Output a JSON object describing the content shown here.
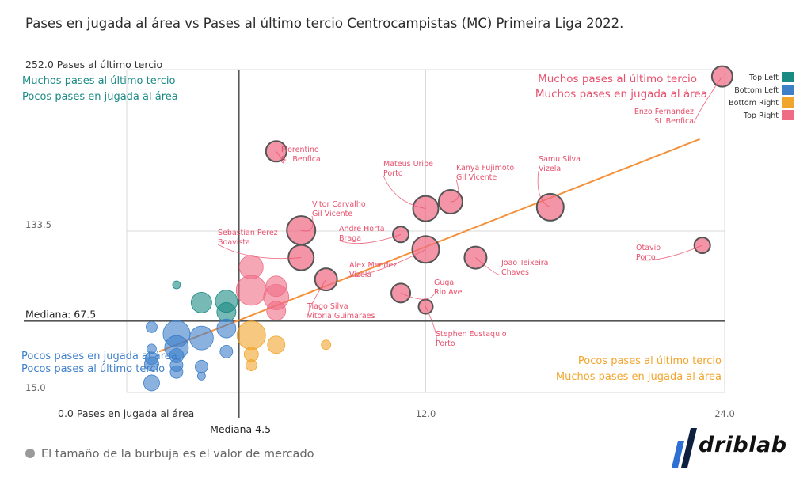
{
  "title": "Pases en jugada al área vs Pases al último tercio Centrocampistas (MC) Primeira Liga 2022.",
  "footer": {
    "icon": "bulb-icon",
    "text": "El tamaño de la burbuja es el valor de mercado"
  },
  "brand": {
    "name": "driblab"
  },
  "colors": {
    "top_left": "#1a8a84",
    "bottom_left": "#3d7fc9",
    "bottom_right": "#f2a52c",
    "top_right": "#ee6c85",
    "trend": "#f4903a",
    "grid": "#d9d9d9",
    "median": "#555555"
  },
  "chart_data": {
    "type": "scatter",
    "x_axis": {
      "label": "Pases en jugada al área",
      "ticks": [
        "0.0 Pases en jugada al área",
        "12.0",
        "24.0"
      ],
      "range": [
        0.0,
        24.0
      ],
      "median_label": "Mediana 4.5",
      "median": 4.5
    },
    "y_axis": {
      "label": "Pases al último tercio",
      "ticks": [
        "252.0 Pases al último tercio",
        "133.5",
        "15.0"
      ],
      "range": [
        15.0,
        252.0
      ],
      "median_label": "Mediana: 67.5",
      "median": 67.5
    },
    "grid": true,
    "legend_position": "right",
    "legend": [
      {
        "name": "Top Left",
        "color": "#1a8a84"
      },
      {
        "name": "Bottom Left",
        "color": "#3d7fc9"
      },
      {
        "name": "Bottom Right",
        "color": "#f2a52c"
      },
      {
        "name": "Top Right",
        "color": "#ee6c85"
      }
    ],
    "quadrant_labels": {
      "top_left": [
        "Muchos pases al último tercio",
        "Pocos pases en jugada al área"
      ],
      "top_right": [
        "Muchos pases al último tercio",
        "Muchos pases en jugada al área"
      ],
      "bottom_left": [
        "Pocos pases en jugada al área",
        "Pocos pases al último tercio"
      ],
      "bottom_right": [
        "Pocos pases al último tercio",
        "Muchos pases en jugada al área"
      ]
    },
    "trend_line": {
      "x": [
        1.3,
        23.0
      ],
      "y": [
        45.0,
        201.0
      ]
    },
    "points": [
      {
        "x": 23.9,
        "y": 247,
        "size": 13,
        "group": "Top Right",
        "label": [
          "Enzo Fernandez",
          "SL Benfica"
        ]
      },
      {
        "x": 23.1,
        "y": 123,
        "size": 10,
        "group": "Top Right",
        "label": [
          "Otavio",
          "Porto"
        ]
      },
      {
        "x": 17.0,
        "y": 151,
        "size": 17,
        "group": "Top Right",
        "label": [
          "Samu Silva",
          "Vizela"
        ]
      },
      {
        "x": 13.0,
        "y": 155,
        "size": 15,
        "group": "Top Right",
        "label": [
          "Kanya Fujimoto",
          "Gil Vicente"
        ]
      },
      {
        "x": 12.0,
        "y": 150,
        "size": 16,
        "group": "Top Right",
        "label": [
          "Mateus Uribe",
          "Porto"
        ]
      },
      {
        "x": 14.0,
        "y": 114,
        "size": 14,
        "group": "Top Right",
        "label": [
          "Joao Teixeira",
          "Chaves"
        ]
      },
      {
        "x": 12.0,
        "y": 120,
        "size": 17,
        "group": "Top Right",
        "label": [
          "Alex Mendez",
          "Vizelá"
        ]
      },
      {
        "x": 11.0,
        "y": 131,
        "size": 10,
        "group": "Top Right",
        "label": [
          "Andre Horta",
          "Braga"
        ]
      },
      {
        "x": 11.0,
        "y": 88,
        "size": 12,
        "group": "Top Right",
        "label": [
          "Guga",
          "Rio Ave"
        ]
      },
      {
        "x": 12.0,
        "y": 78,
        "size": 9,
        "group": "Top Right",
        "label": [
          "Stephen Eustaquio",
          "Porto"
        ]
      },
      {
        "x": 6.0,
        "y": 192,
        "size": 13,
        "group": "Top Right",
        "label": [
          "Florentino",
          "SL Benfica"
        ]
      },
      {
        "x": 7.0,
        "y": 134,
        "size": 18,
        "group": "Top Right",
        "label": [
          "Vitor Carvalho",
          "Gil Vicente"
        ]
      },
      {
        "x": 7.0,
        "y": 114,
        "size": 16,
        "group": "Top Right",
        "label": [
          "Sebastian Perez",
          "Boavista"
        ]
      },
      {
        "x": 8.0,
        "y": 98,
        "size": 14,
        "group": "Top Right",
        "label": [
          "Tiago Silva",
          "Vitoria Guimaraes"
        ]
      },
      {
        "x": 5.0,
        "y": 107,
        "size": 15,
        "group": "Top Right",
        "label": []
      },
      {
        "x": 5.0,
        "y": 90,
        "size": 19,
        "group": "Top Right",
        "label": []
      },
      {
        "x": 6.0,
        "y": 93,
        "size": 13,
        "group": "Top Right",
        "label": []
      },
      {
        "x": 6.0,
        "y": 85,
        "size": 16,
        "group": "Top Right",
        "label": []
      },
      {
        "x": 6.0,
        "y": 75,
        "size": 12,
        "group": "Top Right",
        "label": []
      },
      {
        "x": 2.0,
        "y": 94,
        "size": 5,
        "group": "Top Left",
        "label": []
      },
      {
        "x": 3.0,
        "y": 81,
        "size": 13,
        "group": "Top Left",
        "label": []
      },
      {
        "x": 4.0,
        "y": 82,
        "size": 14,
        "group": "Top Left",
        "label": []
      },
      {
        "x": 4.0,
        "y": 74,
        "size": 12,
        "group": "Top Left",
        "label": []
      },
      {
        "x": 1.0,
        "y": 63,
        "size": 7,
        "group": "Bottom Left",
        "label": []
      },
      {
        "x": 1.0,
        "y": 40,
        "size": 8,
        "group": "Bottom Left",
        "label": []
      },
      {
        "x": 1.0,
        "y": 36,
        "size": 9,
        "group": "Bottom Left",
        "label": []
      },
      {
        "x": 1.0,
        "y": 22,
        "size": 10,
        "group": "Bottom Left",
        "label": []
      },
      {
        "x": 1.0,
        "y": 47,
        "size": 6,
        "group": "Bottom Left",
        "label": []
      },
      {
        "x": 2.0,
        "y": 58,
        "size": 17,
        "group": "Bottom Left",
        "label": []
      },
      {
        "x": 2.0,
        "y": 48,
        "size": 15,
        "group": "Bottom Left",
        "label": []
      },
      {
        "x": 2.0,
        "y": 42,
        "size": 9,
        "group": "Bottom Left",
        "label": []
      },
      {
        "x": 2.0,
        "y": 35,
        "size": 8,
        "group": "Bottom Left",
        "label": []
      },
      {
        "x": 2.0,
        "y": 30,
        "size": 8,
        "group": "Bottom Left",
        "label": []
      },
      {
        "x": 3.0,
        "y": 55,
        "size": 15,
        "group": "Bottom Left",
        "label": []
      },
      {
        "x": 3.0,
        "y": 34,
        "size": 8,
        "group": "Bottom Left",
        "label": []
      },
      {
        "x": 3.0,
        "y": 27,
        "size": 5,
        "group": "Bottom Left",
        "label": []
      },
      {
        "x": 4.0,
        "y": 62,
        "size": 12,
        "group": "Bottom Left",
        "label": []
      },
      {
        "x": 4.0,
        "y": 45,
        "size": 8,
        "group": "Bottom Left",
        "label": []
      },
      {
        "x": 5.0,
        "y": 57,
        "size": 18,
        "group": "Bottom Right",
        "label": []
      },
      {
        "x": 5.0,
        "y": 43,
        "size": 9,
        "group": "Bottom Right",
        "label": []
      },
      {
        "x": 5.0,
        "y": 35,
        "size": 7,
        "group": "Bottom Right",
        "label": []
      },
      {
        "x": 6.0,
        "y": 50,
        "size": 11,
        "group": "Bottom Right",
        "label": []
      },
      {
        "x": 8.0,
        "y": 50,
        "size": 6,
        "group": "Bottom Right",
        "label": []
      }
    ]
  }
}
